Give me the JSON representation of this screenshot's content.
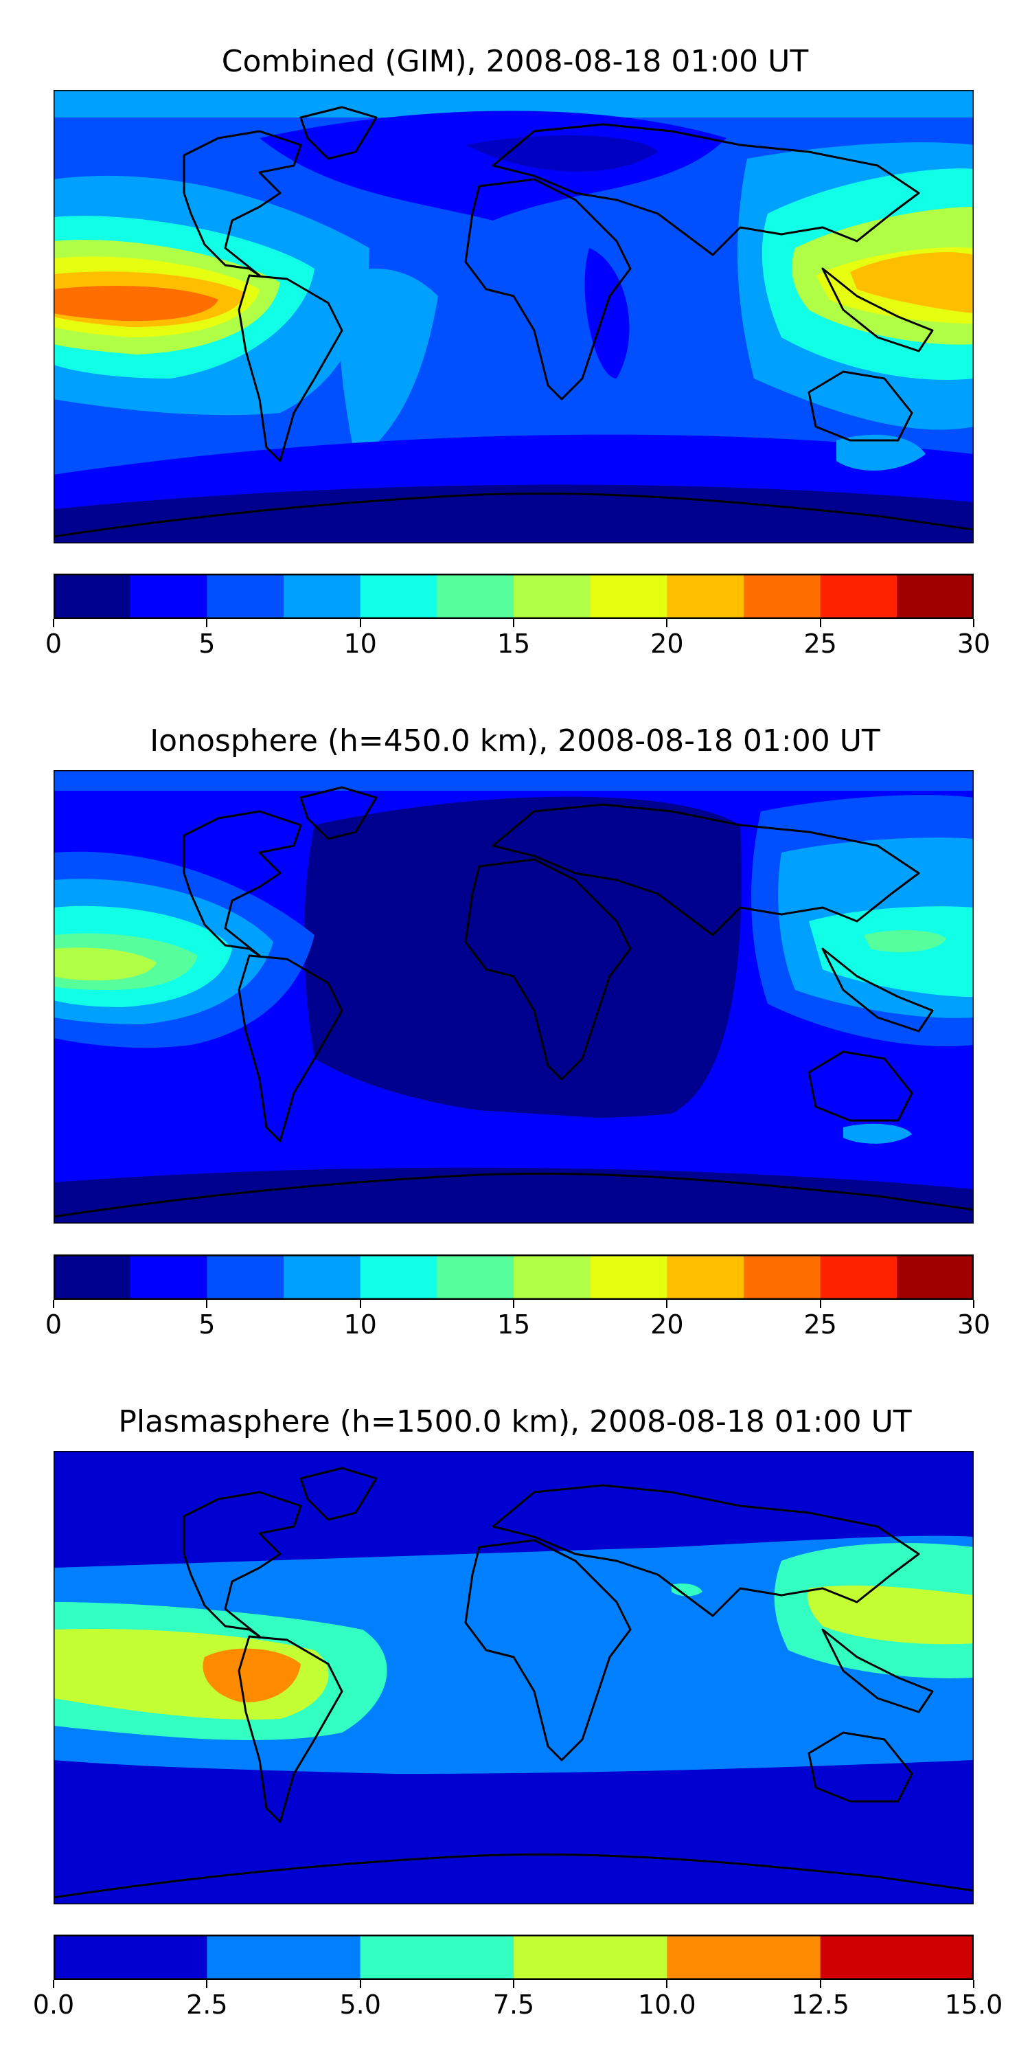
{
  "panels": [
    {
      "title": "Combined (GIM), 2008-08-18 01:00 UT",
      "colorbar": {
        "vmin": 0,
        "vmax": 30,
        "colors": [
          "#00008f",
          "#0000ff",
          "#0050ff",
          "#00a0ff",
          "#11ffe6",
          "#57ff9c",
          "#b0ff46",
          "#e6ff11",
          "#ffbe00",
          "#ff6e00",
          "#ff2300",
          "#a00000"
        ],
        "ticks": [
          "0",
          "5",
          "10",
          "15",
          "20",
          "25",
          "30"
        ]
      }
    },
    {
      "title": "Ionosphere  (h=450.0 km), 2008-08-18 01:00 UT",
      "colorbar": {
        "vmin": 0,
        "vmax": 30,
        "colors": [
          "#00008f",
          "#0000ff",
          "#0050ff",
          "#00a0ff",
          "#11ffe6",
          "#57ff9c",
          "#b0ff46",
          "#e6ff11",
          "#ffbe00",
          "#ff6e00",
          "#ff2300",
          "#a00000"
        ],
        "ticks": [
          "0",
          "5",
          "10",
          "15",
          "20",
          "25",
          "30"
        ]
      }
    },
    {
      "title": "Plasmasphere (h=1500.0 km), 2008-08-18 01:00 UT",
      "colorbar": {
        "vmin": 0,
        "vmax": 15,
        "colors": [
          "#0000d0",
          "#0080ff",
          "#33ffc3",
          "#c3ff33",
          "#ff8b00",
          "#d00000"
        ],
        "ticks": [
          "0.0",
          "2.5",
          "5.0",
          "7.5",
          "10.0",
          "12.5",
          "15.0"
        ]
      }
    }
  ]
}
